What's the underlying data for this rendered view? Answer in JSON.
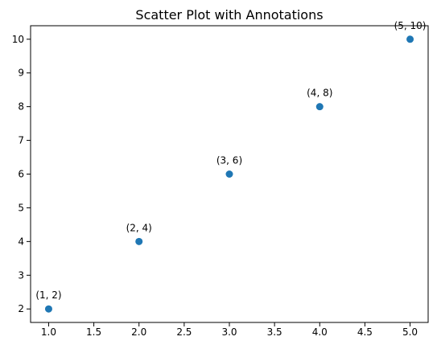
{
  "chart_data": {
    "type": "scatter",
    "title": "Scatter Plot with Annotations",
    "xlabel": "",
    "ylabel": "",
    "xlim": [
      0.8,
      5.2
    ],
    "ylim": [
      1.6,
      10.4
    ],
    "x_ticks": [
      1.0,
      1.5,
      2.0,
      2.5,
      3.0,
      3.5,
      4.0,
      4.5,
      5.0
    ],
    "x_tick_labels": [
      "1.0",
      "1.5",
      "2.0",
      "2.5",
      "3.0",
      "3.5",
      "4.0",
      "4.5",
      "5.0"
    ],
    "y_ticks": [
      2,
      3,
      4,
      5,
      6,
      7,
      8,
      9,
      10
    ],
    "y_tick_labels": [
      "2",
      "3",
      "4",
      "5",
      "6",
      "7",
      "8",
      "9",
      "10"
    ],
    "grid": false,
    "series": [
      {
        "color": "#1f77b4",
        "points": [
          {
            "x": 1,
            "y": 2,
            "label": "(1, 2)"
          },
          {
            "x": 2,
            "y": 4,
            "label": "(2, 4)"
          },
          {
            "x": 3,
            "y": 6,
            "label": "(3, 6)"
          },
          {
            "x": 4,
            "y": 8,
            "label": "(4, 8)"
          },
          {
            "x": 5,
            "y": 10,
            "label": "(5, 10)"
          }
        ]
      }
    ]
  }
}
